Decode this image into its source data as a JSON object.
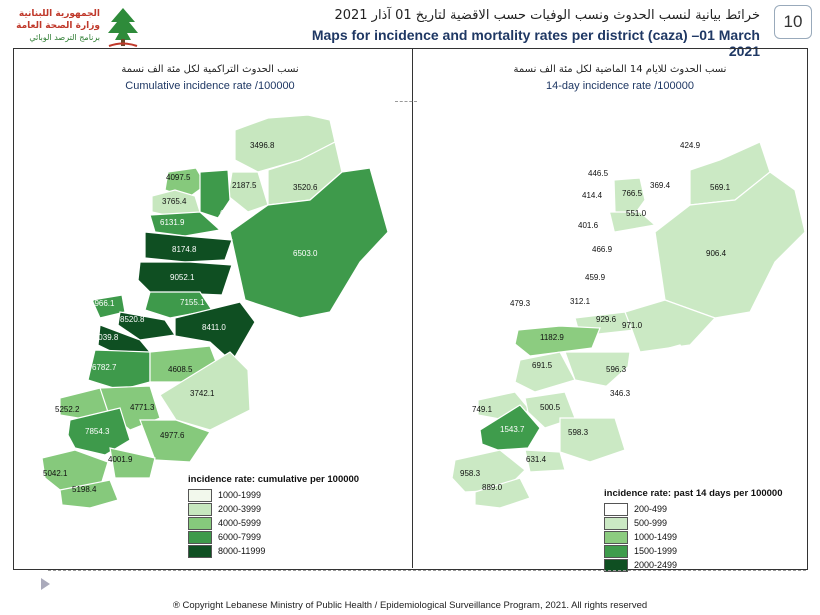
{
  "header": {
    "logo": {
      "line1": "الجمهورية اللبنانية",
      "line2": "وزارة الصحة العامة",
      "line3": "برنامج الترصد الوبائي"
    },
    "title_ar": "خرائط بيانية لنسب الحدوث ونسب الوفيات حسب الاقضية لتاريخ 01 آذار 2021",
    "title_en": "Maps for incidence and mortality rates per district (caza) –01 March 2021",
    "page_number": "10"
  },
  "left_panel": {
    "title_ar": "نسب الحدوث التراكمية لكل مئة الف نسمة",
    "title_en": "Cumulative incidence rate /100000",
    "legend_title": "incidence rate: cumulative per 100000",
    "legend": [
      {
        "label": "1000-1999",
        "color": "#f2f8ec"
      },
      {
        "label": "2000-3999",
        "color": "#c7e7bf"
      },
      {
        "label": "4000-5999",
        "color": "#86c97c"
      },
      {
        "label": "6000-7999",
        "color": "#3e9a4b"
      },
      {
        "label": "8000-11999",
        "color": "#0f4f22"
      }
    ],
    "districts": [
      {
        "label": "3496.8"
      },
      {
        "label": "2187.5"
      },
      {
        "label": "4097.5"
      },
      {
        "label": "3520.6"
      },
      {
        "label": "3765.4"
      },
      {
        "label": "6299.7"
      },
      {
        "label": "6131.9"
      },
      {
        "label": "6503.0"
      },
      {
        "label": "8174.8"
      },
      {
        "label": "9052.1"
      },
      {
        "label": "6966.1"
      },
      {
        "label": "7155.1"
      },
      {
        "label": "8520.8"
      },
      {
        "label": "8411.0"
      },
      {
        "label": "11039.8"
      },
      {
        "label": "6782.7"
      },
      {
        "label": "4608.5"
      },
      {
        "label": "3742.1"
      },
      {
        "label": "5252.2"
      },
      {
        "label": "4771.3"
      },
      {
        "label": "7854.3"
      },
      {
        "label": "4977.6"
      },
      {
        "label": "4001.9"
      },
      {
        "label": "5042.1"
      },
      {
        "label": "5198.4"
      }
    ]
  },
  "right_panel": {
    "title_ar": "نسب الحدوث للايام 14 الماضية لكل مئة الف نسمة",
    "title_en": "14-day incidence rate /100000",
    "legend_title": "incidence rate: past 14 days per 100000",
    "legend": [
      {
        "label": "200-499",
        "color": "#ffffff"
      },
      {
        "label": "500-999",
        "color": "#cbe9c4"
      },
      {
        "label": "1000-1499",
        "color": "#8ccc80"
      },
      {
        "label": "1500-1999",
        "color": "#3f9c4c"
      },
      {
        "label": "2000-2499",
        "color": "#0f4f22"
      }
    ],
    "districts": [
      {
        "label": "424.9"
      },
      {
        "label": "446.5"
      },
      {
        "label": "369.4"
      },
      {
        "label": "569.1"
      },
      {
        "label": "414.4"
      },
      {
        "label": "766.5"
      },
      {
        "label": "551.0"
      },
      {
        "label": "401.6"
      },
      {
        "label": "466.9"
      },
      {
        "label": "906.4"
      },
      {
        "label": "459.9"
      },
      {
        "label": "479.3"
      },
      {
        "label": "312.1"
      },
      {
        "label": "929.6"
      },
      {
        "label": "971.0"
      },
      {
        "label": "1182.9"
      },
      {
        "label": "691.5"
      },
      {
        "label": "596.3"
      },
      {
        "label": "346.3"
      },
      {
        "label": "749.1"
      },
      {
        "label": "500.5"
      },
      {
        "label": "1543.7"
      },
      {
        "label": "598.3"
      },
      {
        "label": "631.4"
      },
      {
        "label": "958.3"
      },
      {
        "label": "889.0"
      }
    ]
  },
  "footer": "® Copyright Lebanese Ministry of Public Health / Epidemiological Surveillance Program, 2021. All rights reserved"
}
